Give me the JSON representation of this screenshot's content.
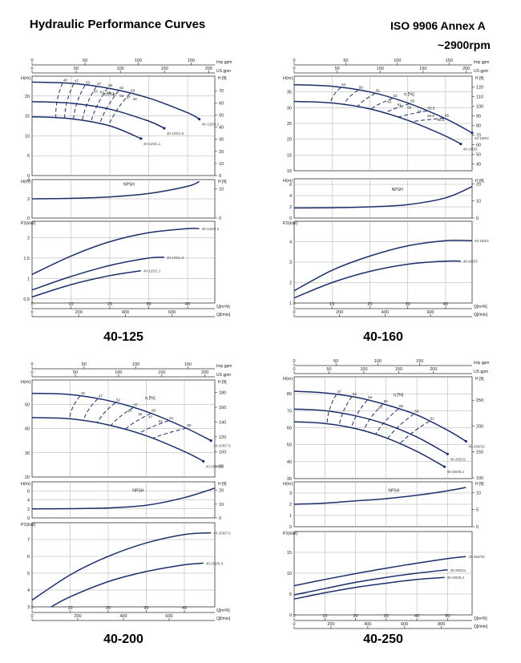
{
  "header": {
    "title": "Hydraulic Performance Curves",
    "standard": "ISO 9906   Annex A",
    "speed": "~2900rpm"
  },
  "colors": {
    "curve": "#1b2f6b",
    "grid": "#a9a9a9",
    "frame": "#333333"
  },
  "chart_data": [
    {
      "type": "line",
      "title": "40-125",
      "flow_axes": {
        "top_imp": {
          "label": "Imp gpm",
          "ticks": [
            0,
            50,
            100,
            150
          ]
        },
        "top_us": {
          "label": "US gpm",
          "ticks": [
            0,
            50,
            100,
            150,
            200
          ]
        },
        "bottom_m3h": {
          "label": "Q[m³/h]",
          "ticks": [
            0,
            10,
            20,
            30,
            40
          ]
        },
        "bottom_lmin": {
          "label": "Q[l/min]",
          "ticks": [
            0,
            200,
            400,
            600
          ]
        }
      },
      "head": {
        "ylabel": "H(m)",
        "ylabel_right": "H [ft]",
        "ylim": [
          0,
          25
        ],
        "ticks": [
          0,
          5,
          10,
          15,
          20
        ],
        "ticks_right": [
          0,
          10,
          20,
          30,
          40,
          50,
          60,
          70
        ],
        "series": [
          {
            "name": "40-125/2.2",
            "x": [
              0,
              10,
              20,
              30,
              40,
              43
            ],
            "y": [
              23.5,
              23.2,
              21.9,
              19.5,
              15.8,
              14.2
            ]
          },
          {
            "name": "40-125/1.5",
            "x": [
              0,
              10,
              20,
              30,
              34
            ],
            "y": [
              18.6,
              18.2,
              16.7,
              13.7,
              11.9
            ]
          },
          {
            "name": "40-125/1.1",
            "x": [
              0,
              10,
              20,
              28
            ],
            "y": [
              14.8,
              14.3,
              12.5,
              9.3
            ]
          }
        ],
        "efficiency": {
          "label": "η [%]",
          "values": [
            "40",
            "47",
            "53",
            "57",
            "60",
            "62",
            "63",
            "63",
            "62",
            "60",
            "57",
            "53",
            "47",
            "40"
          ]
        }
      },
      "npsh": {
        "label": "NPSH",
        "ylabel": "H(m)",
        "ylabel_right": "H [ft]",
        "ylim": [
          0,
          4
        ],
        "ticks": [
          0,
          2,
          4
        ],
        "ticks_right": [
          0,
          10,
          20
        ],
        "x": [
          0,
          10,
          20,
          30,
          40,
          43
        ],
        "y": [
          2.0,
          2.05,
          2.2,
          2.55,
          3.3,
          3.8
        ]
      },
      "power": {
        "ylabel": "P2(kW)",
        "ylim": [
          0.4,
          2.4
        ],
        "ticks": [
          0.5,
          1,
          1.5,
          2
        ],
        "series": [
          {
            "name": "40-125/2.2",
            "x": [
              0,
              10,
              20,
              30,
              40,
              43
            ],
            "y": [
              1.1,
              1.55,
              1.9,
              2.12,
              2.22,
              2.22
            ]
          },
          {
            "name": "40-125/1.5",
            "x": [
              0,
              10,
              20,
              30,
              34
            ],
            "y": [
              0.72,
              1.05,
              1.32,
              1.5,
              1.52
            ]
          },
          {
            "name": "40-125/1.1",
            "x": [
              0,
              10,
              20,
              28
            ],
            "y": [
              0.55,
              0.85,
              1.07,
              1.19
            ]
          }
        ]
      }
    },
    {
      "type": "line",
      "title": "40-160",
      "flow_axes": {
        "top_imp": {
          "label": "Imp gpm",
          "ticks": [
            0,
            50,
            100,
            150
          ]
        },
        "top_us": {
          "label": "US gpm",
          "ticks": [
            0,
            50,
            100,
            150,
            200
          ]
        },
        "bottom_m3h": {
          "label": "Q[m³/h]",
          "ticks": [
            0,
            10,
            20,
            30,
            40
          ]
        },
        "bottom_lmin": {
          "label": "Q[l/min]",
          "ticks": [
            0,
            200,
            400,
            600
          ]
        }
      },
      "head": {
        "ylabel": "H(m)",
        "ylabel_right": "H [ft]",
        "ylim": [
          10,
          40
        ],
        "ticks": [
          10,
          15,
          20,
          25,
          30,
          35
        ],
        "ticks_right": [
          40,
          50,
          60,
          70,
          80,
          90,
          100,
          110,
          120
        ],
        "series": [
          {
            "name": "40-160/4",
            "x": [
              0,
              10,
              20,
              30,
              40,
              47
            ],
            "y": [
              37.3,
              36.8,
              35.0,
              31.5,
              26.5,
              22.0
            ]
          },
          {
            "name": "40-160/3",
            "x": [
              0,
              10,
              20,
              30,
              40,
              44
            ],
            "y": [
              32.0,
              31.5,
              29.6,
              26.0,
              21.0,
              18.5
            ]
          }
        ],
        "efficiency": {
          "label": "η [%]",
          "values": [
            "54",
            "58",
            "61",
            "63",
            "65",
            "65.5",
            "65",
            "63",
            "61",
            "58",
            "54",
            "65.5",
            "65.5"
          ]
        }
      },
      "npsh": {
        "label": "NPSH",
        "ylabel": "H(m)",
        "ylabel_right": "H [ft]",
        "ylim": [
          0,
          7
        ],
        "ticks": [
          0,
          2,
          4,
          6
        ],
        "ticks_right": [
          0,
          10,
          20
        ],
        "x": [
          0,
          10,
          20,
          30,
          40,
          47
        ],
        "y": [
          1.8,
          1.85,
          2.0,
          2.4,
          3.6,
          5.6
        ]
      },
      "power": {
        "ylabel": "P2(kW)",
        "ylim": [
          1,
          5
        ],
        "ticks": [
          1,
          2,
          3,
          4
        ],
        "series": [
          {
            "name": "40-160/4",
            "x": [
              0,
              10,
              20,
              30,
              40,
              47
            ],
            "y": [
              1.6,
              2.6,
              3.3,
              3.8,
              4.05,
              4.05
            ]
          },
          {
            "name": "40-160/3",
            "x": [
              0,
              10,
              20,
              30,
              40,
              44
            ],
            "y": [
              1.25,
              2.0,
              2.55,
              2.9,
              3.05,
              3.05
            ]
          }
        ]
      }
    },
    {
      "type": "line",
      "title": "40-200",
      "flow_axes": {
        "top_imp": {
          "label": "Imp gpm",
          "ticks": [
            0,
            50,
            100,
            150
          ]
        },
        "top_us": {
          "label": "US gpm",
          "ticks": [
            0,
            50,
            100,
            150,
            200
          ]
        },
        "bottom_m3h": {
          "label": "Q[m³/h]",
          "ticks": [
            0,
            10,
            20,
            30,
            40
          ]
        },
        "bottom_lmin": {
          "label": "Q[l/min]",
          "ticks": [
            0,
            200,
            400,
            600
          ]
        }
      },
      "head": {
        "ylabel": "H(m)",
        "ylabel_right": "H [ft]",
        "ylim": [
          20,
          60
        ],
        "ticks": [
          20,
          30,
          40,
          50
        ],
        "ticks_right": [
          80,
          100,
          120,
          140,
          160,
          180
        ],
        "series": [
          {
            "name": "40-200/7.5",
            "x": [
              0,
              10,
              20,
              30,
              40,
              47
            ],
            "y": [
              54.5,
              54.0,
              51.5,
              47.0,
              40.5,
              35.0
            ]
          },
          {
            "name": "40-200/5.5",
            "x": [
              0,
              10,
              20,
              30,
              40,
              45
            ],
            "y": [
              44.5,
              44.0,
              41.5,
              37.0,
              30.5,
              26.5
            ]
          }
        ],
        "efficiency": {
          "label": "η [%]",
          "values": [
            "42",
            "47",
            "52",
            "57",
            "60",
            "61",
            "60",
            "57",
            "52",
            "47",
            "61"
          ]
        }
      },
      "npsh": {
        "label": "NPSH",
        "ylabel": "H(m)",
        "ylabel_right": "H [ft]",
        "ylim": [
          0,
          8
        ],
        "ticks": [
          0,
          2,
          4,
          6
        ],
        "ticks_right": [
          0,
          10,
          20
        ],
        "x": [
          0,
          10,
          20,
          30,
          40,
          48
        ],
        "y": [
          2.0,
          2.05,
          2.2,
          2.8,
          4.5,
          6.6
        ]
      },
      "power": {
        "ylabel": "P2(kW)",
        "ylim": [
          3,
          8
        ],
        "ticks": [
          3,
          4,
          5,
          6,
          7
        ],
        "series": [
          {
            "name": "40-200/7.5",
            "x": [
              0,
              10,
              20,
              30,
              40,
              47
            ],
            "y": [
              3.4,
              4.9,
              6.0,
              6.8,
              7.3,
              7.4
            ]
          },
          {
            "name": "40-200/5.5",
            "x": [
              5,
              10,
              20,
              30,
              40,
              45
            ],
            "y": [
              3.0,
              3.6,
              4.5,
              5.1,
              5.5,
              5.6
            ]
          }
        ]
      }
    },
    {
      "type": "line",
      "title": "40-250",
      "flow_axes": {
        "top_imp": {
          "label": "Imp gpm",
          "ticks": [
            0,
            50,
            100,
            150
          ]
        },
        "top_us": {
          "label": "US gpm",
          "ticks": [
            0,
            50,
            100,
            150,
            200
          ]
        },
        "bottom_m3h": {
          "label": "Q[m³/h]",
          "ticks": [
            0,
            10,
            20,
            30,
            40,
            50
          ]
        },
        "bottom_lmin": {
          "label": "Q[l/min]",
          "ticks": [
            0,
            200,
            400,
            600,
            800
          ]
        }
      },
      "head": {
        "ylabel": "H(m)",
        "ylabel_right": "H [ft]",
        "ylim": [
          30,
          90
        ],
        "ticks": [
          30,
          40,
          50,
          60,
          70,
          80
        ],
        "ticks_right": [
          100,
          150,
          200,
          250
        ],
        "series": [
          {
            "name": "40-250/15",
            "x": [
              0,
              10,
              20,
              30,
              40,
              50,
              56
            ],
            "y": [
              81.5,
              80.5,
              78.0,
              73.5,
              67.5,
              58.5,
              52.0
            ]
          },
          {
            "name": "40-250/11",
            "x": [
              0,
              10,
              20,
              30,
              40,
              50
            ],
            "y": [
              71.0,
              70.0,
              67.0,
              62.0,
              54.5,
              44.5
            ]
          },
          {
            "name": "40-250/9.2",
            "x": [
              0,
              10,
              20,
              30,
              40,
              49
            ],
            "y": [
              63.5,
              62.5,
              59.5,
              54.0,
              46.0,
              37.0
            ]
          }
        ],
        "efficiency": {
          "label": "η [%]",
          "values": [
            "47",
            "52",
            "54",
            "56",
            "55",
            "54",
            "52",
            "47"
          ]
        }
      },
      "npsh": {
        "label": "NPSH",
        "ylabel": "H(m)",
        "ylabel_right": "H [ft]",
        "ylim": [
          0,
          4
        ],
        "ticks": [
          0,
          1,
          2,
          3
        ],
        "ticks_right": [
          0,
          5,
          10
        ],
        "x": [
          0,
          10,
          20,
          30,
          40,
          50,
          56
        ],
        "y": [
          2.0,
          2.1,
          2.3,
          2.5,
          2.8,
          3.2,
          3.5
        ]
      },
      "power": {
        "ylabel": "P2(kW)",
        "ylim": [
          0,
          20
        ],
        "ticks": [
          0,
          5,
          10,
          15
        ],
        "series": [
          {
            "name": "40-250/15",
            "x": [
              0,
              10,
              20,
              30,
              40,
              50,
              56
            ],
            "y": [
              7.0,
              8.5,
              9.9,
              11.2,
              12.4,
              13.5,
              14.0
            ]
          },
          {
            "name": "40-250/11",
            "x": [
              0,
              10,
              20,
              30,
              40,
              50
            ],
            "y": [
              4.8,
              6.3,
              7.8,
              9.0,
              10.0,
              10.8
            ]
          },
          {
            "name": "40-250/9.2",
            "x": [
              0,
              10,
              20,
              30,
              40,
              49
            ],
            "y": [
              3.8,
              5.3,
              6.6,
              7.6,
              8.5,
              9.0
            ]
          }
        ]
      }
    }
  ]
}
